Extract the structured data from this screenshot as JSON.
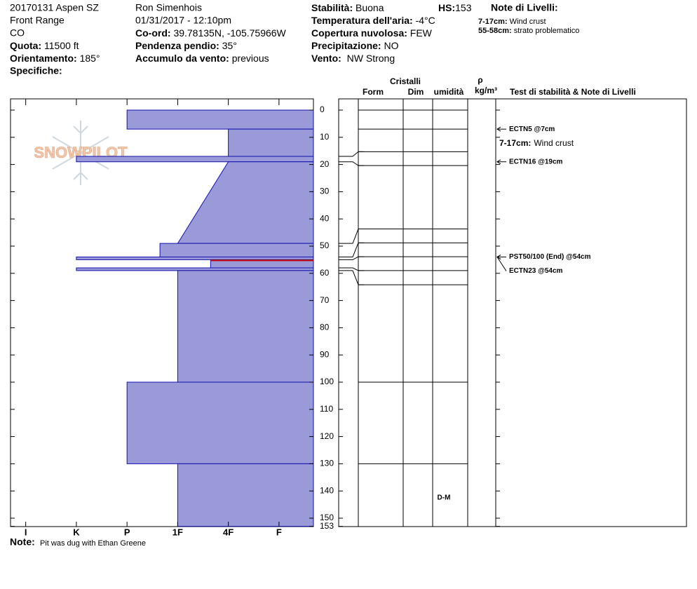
{
  "header": {
    "site": "20170131 Aspen SZ",
    "range": "Front Range",
    "state": "CO",
    "elevation": {
      "label": "Quota:",
      "value": "11500 ft"
    },
    "aspect": {
      "label": "Orientamento:",
      "value": "185°"
    },
    "specifics": {
      "label": "Specifiche:"
    },
    "observer": "Ron Simenhois",
    "datetime": "01/31/2017 - 12:10pm",
    "coords": {
      "label": "Co-ord:",
      "value": "39.78135N, -105.75966W"
    },
    "slope": {
      "label": "Pendenza pendio:",
      "value": "35°"
    },
    "wind_loading": {
      "label": "Accumulo da vento:",
      "value": "previous"
    },
    "stability": {
      "label": "Stabilità:",
      "value": "Buona"
    },
    "hs": {
      "label": "HS:",
      "value": 153
    },
    "air_temp": {
      "label": "Temperatura dell'aria:",
      "value": "-4°C"
    },
    "sky": {
      "label": "Copertura nuvolosa:",
      "value": "FEW"
    },
    "precip": {
      "label": "Precipitazione:",
      "value": "NO"
    },
    "wind": {
      "label": "Vento:",
      "value": "NW Strong"
    },
    "layer_notes": {
      "title": "Note di Livelli:",
      "items": [
        {
          "range": "7-17cm:",
          "text": "Wind crust"
        },
        {
          "range": "55-58cm:",
          "text": "strato problematico"
        }
      ]
    }
  },
  "chart_data": {
    "type": "profile",
    "logo": "SNOWPILOT",
    "ylim": [
      0,
      153
    ],
    "yticks": [
      0,
      10,
      20,
      30,
      40,
      50,
      60,
      70,
      80,
      90,
      100,
      110,
      120,
      130,
      140,
      150,
      153
    ],
    "xlim": [
      6.3,
      0.32
    ],
    "xticks": [
      {
        "value": 6,
        "label": "I"
      },
      {
        "value": 5,
        "label": "K"
      },
      {
        "value": 4,
        "label": "P"
      },
      {
        "value": 3,
        "label": "1F"
      },
      {
        "value": 2,
        "label": "4F"
      },
      {
        "value": 1,
        "label": "F"
      }
    ],
    "color": "#9a9ad8",
    "edge_color": "#1010b0",
    "problem_color": "#cc0000",
    "layers": [
      {
        "top": 0,
        "bottom": 7,
        "hardness_top": 4,
        "hardness_bottom": 4
      },
      {
        "top": 7,
        "bottom": 17,
        "hardness_top": 2,
        "hardness_bottom": 2
      },
      {
        "top": 17,
        "bottom": 19,
        "hardness_top": 5,
        "hardness_bottom": 5
      },
      {
        "top": 19,
        "bottom": 49,
        "hardness_top": 2,
        "hardness_bottom": 3
      },
      {
        "top": 49,
        "bottom": 54,
        "hardness_top": 3.35,
        "hardness_bottom": 3.35
      },
      {
        "top": 54,
        "bottom": 55,
        "hardness_top": 5,
        "hardness_bottom": 5
      },
      {
        "top": 55,
        "bottom": 58,
        "hardness_top": 2.35,
        "hardness_bottom": 2.35,
        "problem": true
      },
      {
        "top": 58,
        "bottom": 59,
        "hardness_top": 5,
        "hardness_bottom": 5
      },
      {
        "top": 59,
        "bottom": 100,
        "hardness_top": 3,
        "hardness_bottom": 3
      },
      {
        "top": 100,
        "bottom": 130,
        "hardness_top": 4,
        "hardness_bottom": 4
      },
      {
        "top": 130,
        "bottom": 153,
        "hardness_top": 3,
        "hardness_bottom": 3
      }
    ],
    "columns": {
      "crystals": "Cristalli",
      "form": "Form",
      "size": "Dim",
      "moisture": "umidità",
      "rho": "ρ",
      "density_unit": "kg/m³",
      "tests": "Test di stabilità & Note di Livelli"
    },
    "grid_lines": [
      0,
      7,
      15.3,
      20.4,
      43.7,
      48.8,
      53.9,
      59,
      64.2,
      100,
      130
    ],
    "connectors": [
      [
        17,
        15.3
      ],
      [
        19,
        20.4
      ],
      [
        49,
        43.7
      ],
      [
        54,
        48.8
      ],
      [
        55,
        53.9
      ],
      [
        58,
        59
      ],
      [
        59,
        64.2
      ]
    ],
    "moisture": [
      {
        "depth": 141,
        "label": "D-M"
      }
    ],
    "tests": [
      {
        "depth": 7,
        "label": "ECTN5 @7cm"
      },
      {
        "depth": 19,
        "label": "ECTN16 @19cm"
      },
      {
        "depth": 54,
        "label": "PST50/100 (End) @54cm"
      },
      {
        "depth": 54,
        "label": "ECTN23 @54cm"
      }
    ],
    "comments": [
      {
        "depth": 12.4,
        "range": "7-17cm:",
        "text": "Wind crust"
      }
    ]
  },
  "note": {
    "label": "Note:",
    "text": "Pit was dug with Ethan Greene"
  }
}
